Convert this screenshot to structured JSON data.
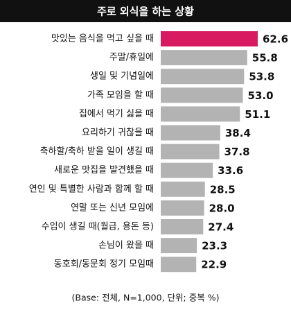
{
  "chart_data": {
    "type": "bar",
    "orientation": "horizontal",
    "title": "주로 외식을 하는 상황",
    "categories": [
      "맛있는 음식을 먹고 싶을 때",
      "주말/휴일에",
      "생일 및 기념일에",
      "가족 모임을 할 때",
      "집에서 먹기 싫을 때",
      "요리하기 귀찮을 때",
      "축하할/축하 받을 일이 생길 때",
      "새로운 맛집을 발견했을 때",
      "연인 및 특별한 사람과 함께 할 때",
      "연말 또는 신년 모임에",
      "수입이 생길 때(월급, 용돈 등)",
      "손님이 왔을 때",
      "동호회/동문회 정기 모임때"
    ],
    "values": [
      62.6,
      55.8,
      53.8,
      53.0,
      51.1,
      38.4,
      37.8,
      33.6,
      28.5,
      28.0,
      27.4,
      23.3,
      22.9
    ],
    "value_labels": [
      "62.6",
      "55.8",
      "53.8",
      "53.0",
      "51.1",
      "38.4",
      "37.8",
      "33.6",
      "28.5",
      "28.0",
      "27.4",
      "23.3",
      "22.9"
    ],
    "colors": [
      "#d81b60",
      "#b3b3b3",
      "#b3b3b3",
      "#b3b3b3",
      "#b3b3b3",
      "#b3b3b3",
      "#b3b3b3",
      "#b3b3b3",
      "#b3b3b3",
      "#b3b3b3",
      "#b3b3b3",
      "#b3b3b3",
      "#b3b3b3"
    ],
    "footnote": "(Base: 전체, N=1,000, 단위; 중복 %)"
  }
}
